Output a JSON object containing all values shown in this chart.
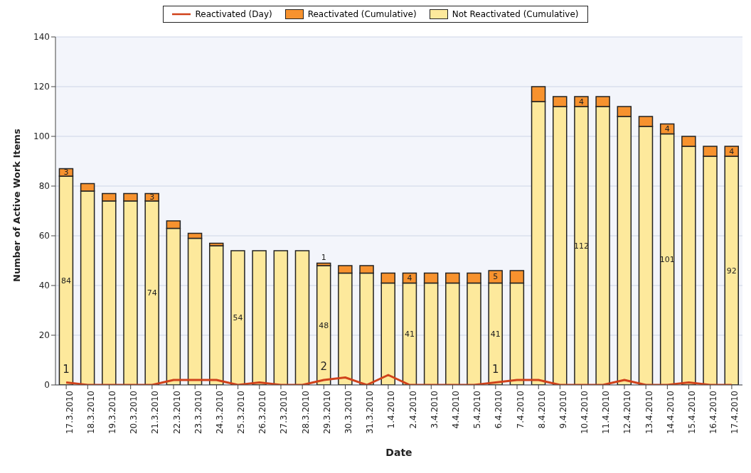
{
  "chart_data": {
    "type": "bar",
    "stacked": true,
    "xlabel": "Date",
    "ylabel": "Number of Active Work Items",
    "categories": [
      "17.3.2010",
      "18.3.2010",
      "19.3.2010",
      "20.3.2010",
      "21.3.2010",
      "22.3.2010",
      "23.3.2010",
      "24.3.2010",
      "25.3.2010",
      "26.3.2010",
      "27.3.2010",
      "28.3.2010",
      "29.3.2010",
      "30.3.2010",
      "31.3.2010",
      "1.4.2010",
      "2.4.2010",
      "3.4.2010",
      "4.4.2010",
      "5.4.2010",
      "6.4.2010",
      "7.4.2010",
      "8.4.2010",
      "9.4.2010",
      "10.4.2010",
      "11.4.2010",
      "12.4.2010",
      "13.4.2010",
      "14.4.2010",
      "15.4.2010",
      "16.4.2010",
      "17.4.2010"
    ],
    "series": [
      {
        "name": "Reactivated (Day)",
        "type": "line",
        "color": "#d0421a",
        "values": [
          1,
          0,
          0,
          0,
          0,
          2,
          2,
          2,
          0,
          1,
          0,
          0,
          2,
          3,
          0,
          4,
          0,
          0,
          0,
          0,
          1,
          2,
          2,
          0,
          0,
          0,
          2,
          0,
          0,
          1,
          0,
          0
        ],
        "value_labels": [
          "1",
          null,
          null,
          null,
          null,
          null,
          null,
          null,
          null,
          null,
          null,
          null,
          "2",
          null,
          null,
          null,
          null,
          null,
          null,
          null,
          "1",
          null,
          null,
          null,
          null,
          null,
          null,
          null,
          null,
          null,
          null,
          null
        ]
      },
      {
        "name": "Not Reactivated (Cumulative)",
        "color": "#fde99c",
        "values": [
          84,
          78,
          74,
          74,
          74,
          63,
          59,
          56,
          54,
          54,
          54,
          54,
          48,
          45,
          45,
          41,
          41,
          41,
          41,
          41,
          41,
          41,
          114,
          112,
          112,
          112,
          108,
          104,
          101,
          96,
          92,
          92
        ],
        "value_labels": [
          "84",
          null,
          null,
          null,
          "74",
          null,
          null,
          null,
          "54",
          null,
          null,
          null,
          "48",
          null,
          null,
          null,
          "41",
          null,
          null,
          null,
          "41",
          null,
          null,
          null,
          "112",
          null,
          null,
          null,
          "101",
          null,
          null,
          "92"
        ]
      },
      {
        "name": "Reactivated (Cumulative)",
        "color": "#f7922e",
        "values": [
          3,
          3,
          3,
          3,
          3,
          3,
          2,
          1,
          0,
          0,
          0,
          0,
          1,
          3,
          3,
          4,
          4,
          4,
          4,
          4,
          5,
          5,
          6,
          4,
          4,
          4,
          4,
          4,
          4,
          4,
          4,
          4
        ],
        "value_labels": [
          "3",
          null,
          null,
          null,
          "3",
          null,
          null,
          null,
          null,
          null,
          null,
          null,
          "1",
          null,
          null,
          null,
          "4",
          null,
          null,
          null,
          "5",
          null,
          null,
          null,
          "4",
          null,
          null,
          null,
          "4",
          null,
          null,
          "4"
        ]
      }
    ],
    "ylim": [
      0,
      140
    ],
    "yticks": [
      0,
      20,
      40,
      60,
      80,
      100,
      120,
      140
    ],
    "grid": "y",
    "legend": "top"
  }
}
